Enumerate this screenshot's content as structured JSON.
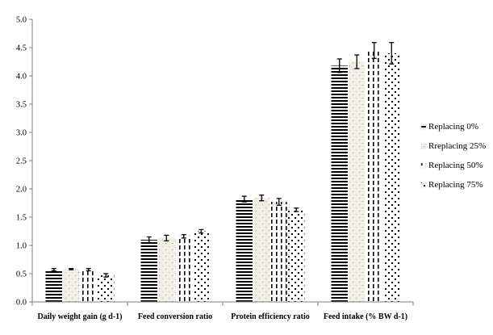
{
  "chart_data": {
    "type": "bar",
    "title": "",
    "xlabel": "",
    "ylabel": "",
    "ylim": [
      0,
      5
    ],
    "yticks": [
      "0.0",
      "0.5",
      "1.0",
      "1.5",
      "2.0",
      "2.5",
      "3.0",
      "3.5",
      "4.0",
      "4.5",
      "5.0"
    ],
    "grid": false,
    "legend_position": "right",
    "categories": [
      "Daily weight gain (g d-1)",
      "Feed conversion ratio",
      "Protein efficiency ratio",
      "Feed intake (% BW d-1)"
    ],
    "series": [
      {
        "name": "Replacing 0%",
        "pattern": "horizontal-lines",
        "values": [
          0.57,
          1.1,
          1.82,
          4.18
        ],
        "errors": [
          0.02,
          0.05,
          0.05,
          0.12
        ]
      },
      {
        "name": "Rreplacing 25%",
        "pattern": "sparse-dots",
        "values": [
          0.58,
          1.13,
          1.84,
          4.25
        ],
        "errors": [
          0.01,
          0.05,
          0.05,
          0.12
        ]
      },
      {
        "name": "Replacing 50%",
        "pattern": "vertical-dashes",
        "values": [
          0.57,
          1.16,
          1.77,
          4.45
        ],
        "errors": [
          0.02,
          0.03,
          0.06,
          0.14
        ]
      },
      {
        "name": "Replacing 75%",
        "pattern": "diamond-dots",
        "values": [
          0.47,
          1.25,
          1.63,
          4.4
        ],
        "errors": [
          0.03,
          0.03,
          0.03,
          0.19
        ]
      }
    ],
    "colors": {
      "ink": "#000000",
      "axis": "#7f7f7f",
      "dot_fill": "#f1efe6"
    }
  }
}
